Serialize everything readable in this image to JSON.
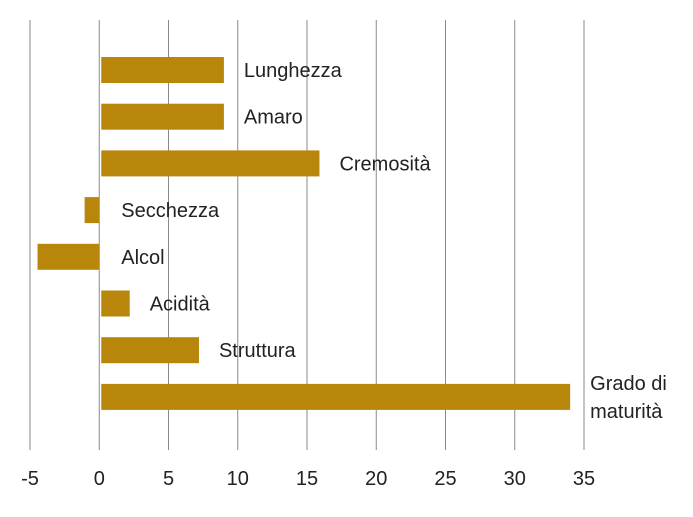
{
  "chart_data": {
    "type": "bar",
    "orientation": "horizontal",
    "categories": [
      "Lunghezza",
      "Amaro",
      "Cremosità",
      "Secchezza",
      "Alcol",
      "Acidità",
      "Struttura",
      "Grado di maturità"
    ],
    "category_lines": [
      [
        "Lunghezza"
      ],
      [
        "Amaro"
      ],
      [
        "Cremosità"
      ],
      [
        "Secchezza"
      ],
      [
        "Alcol"
      ],
      [
        "Acidità"
      ],
      [
        "Struttura"
      ],
      [
        "Grado di",
        "maturità"
      ]
    ],
    "values": [
      9,
      9,
      15.9,
      -1.2,
      -4.6,
      2.2,
      7.2,
      34
    ],
    "xlim": [
      -5,
      35
    ],
    "xticks": [
      "-5",
      "0",
      "5",
      "10",
      "15",
      "20",
      "25",
      "30",
      "35"
    ],
    "grid": "vertical",
    "bar_color": "#b8860b",
    "title": "",
    "xlabel": "",
    "ylabel": ""
  }
}
